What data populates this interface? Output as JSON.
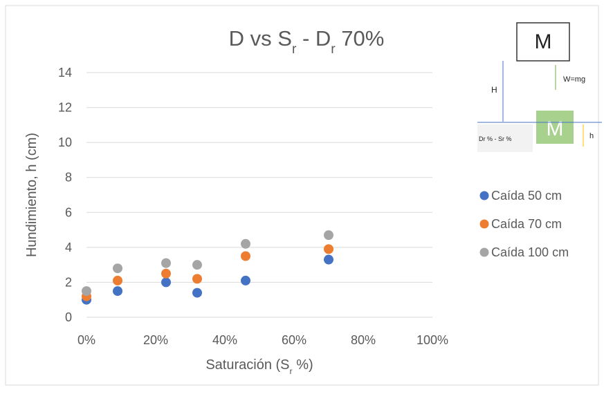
{
  "chart_data": {
    "type": "scatter",
    "title_parts": [
      "D vs S",
      "r",
      " - D",
      "r",
      " 70%"
    ],
    "x_label_parts": [
      "Saturación (S",
      "r",
      " %)"
    ],
    "y_label": "Hundimiento, h (cm)",
    "xlim": [
      0,
      100
    ],
    "xticks": [
      {
        "value": 0,
        "label": "0%"
      },
      {
        "value": 20,
        "label": "20%"
      },
      {
        "value": 40,
        "label": "40%"
      },
      {
        "value": 60,
        "label": "60%"
      },
      {
        "value": 80,
        "label": "80%"
      },
      {
        "value": 100,
        "label": "100%"
      }
    ],
    "ylim": [
      0,
      14
    ],
    "yticks": [
      0,
      2,
      4,
      6,
      8,
      10,
      12,
      14
    ],
    "grid": true,
    "legend": "right",
    "x": [
      0,
      9,
      23,
      32,
      46,
      70
    ],
    "series": [
      {
        "name": "Caída 50 cm",
        "color": "#4472c4",
        "values": [
          1.0,
          1.5,
          2.0,
          1.4,
          2.1,
          3.3
        ]
      },
      {
        "name": "Caída 70 cm",
        "color": "#ed7d31",
        "values": [
          1.2,
          2.1,
          2.5,
          2.2,
          3.5,
          3.9
        ]
      },
      {
        "name": "Caída 100 cm",
        "color": "#a5a5a5",
        "values": [
          1.5,
          2.8,
          3.1,
          3.0,
          4.2,
          4.7
        ]
      }
    ]
  },
  "diagram": {
    "top_block": "M",
    "drop_height": "H",
    "weight": "W=mg",
    "condition": "Dr % - Sr %",
    "bottom_block": "M",
    "penetration": "h"
  }
}
